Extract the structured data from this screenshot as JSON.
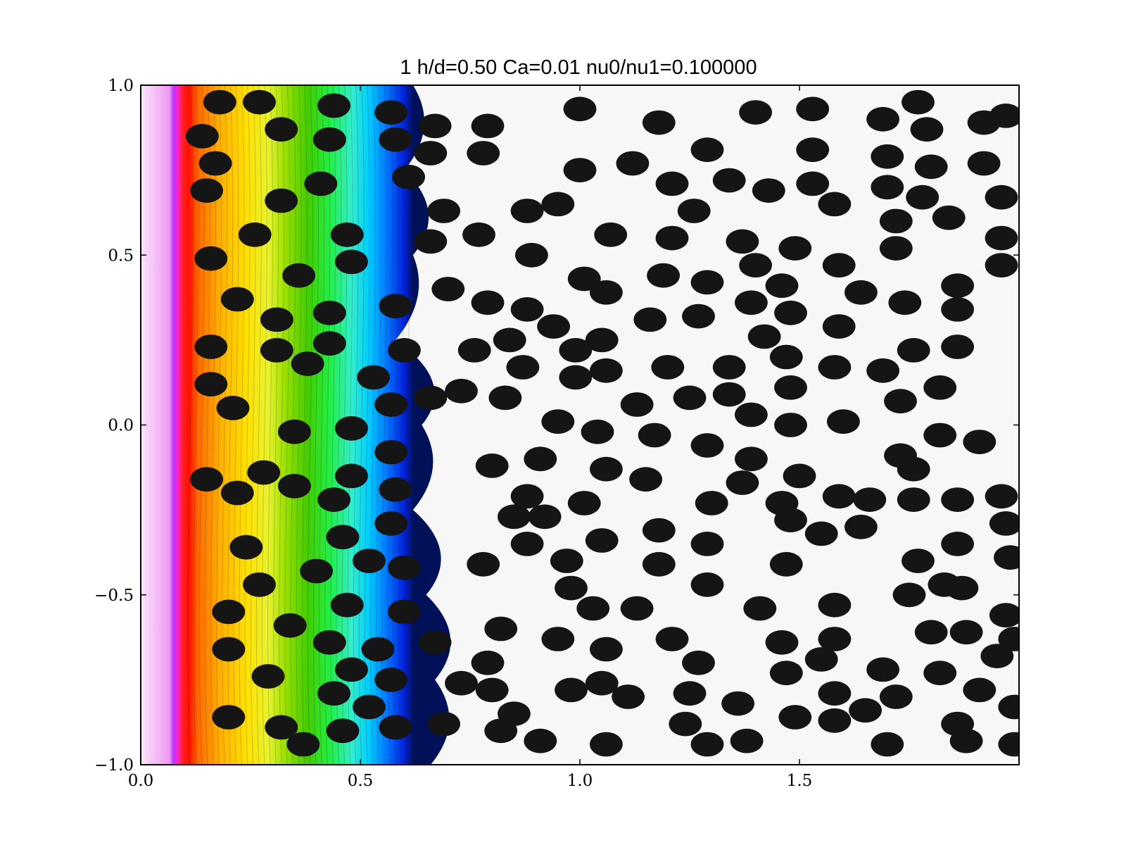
{
  "chart_data": {
    "type": "heatmap",
    "title": "1 h/d=0.50 Ca=0.01 nu0/nu1=0.100000",
    "xlabel": "",
    "ylabel": "",
    "xlim": [
      0.0,
      2.0
    ],
    "ylim": [
      -1.0,
      1.0
    ],
    "xticks": [
      0.0,
      0.5,
      1.0,
      1.5
    ],
    "xtick_labels": [
      "0.0",
      "0.5",
      "1.0",
      "1.5"
    ],
    "yticks": [
      1.0,
      0.5,
      0.0,
      -0.5,
      -1.0
    ],
    "ytick_labels": [
      "1.0",
      "0.5",
      "0.0",
      "−0.5",
      "−1.0"
    ],
    "grid": false,
    "colors": {
      "background": "#f7f7f7",
      "obstacle": "#151515",
      "colormap": [
        "#fbe6fb",
        "#ee99f2",
        "#bb33ff",
        "#ff22cc",
        "#ff2222",
        "#ff1100",
        "#ff6a00",
        "#ffb000",
        "#ffe000",
        "#e8f230",
        "#99e000",
        "#44cc00",
        "#22ee44",
        "#33eecc",
        "#00ccff",
        "#0077ff",
        "#0022dd",
        "#00115a"
      ]
    },
    "front_x": [
      0.62,
      0.64,
      0.6,
      0.66,
      0.64,
      0.67,
      0.69,
      0.68
    ],
    "obstacles": [
      [
        0.18,
        0.95
      ],
      [
        0.27,
        0.95
      ],
      [
        0.44,
        0.94
      ],
      [
        0.57,
        0.92
      ],
      [
        0.14,
        0.85
      ],
      [
        0.32,
        0.87
      ],
      [
        0.43,
        0.84
      ],
      [
        0.58,
        0.84
      ],
      [
        0.17,
        0.77
      ],
      [
        0.15,
        0.69
      ],
      [
        0.32,
        0.66
      ],
      [
        0.41,
        0.71
      ],
      [
        0.61,
        0.73
      ],
      [
        0.26,
        0.56
      ],
      [
        0.47,
        0.56
      ],
      [
        0.16,
        0.49
      ],
      [
        0.36,
        0.44
      ],
      [
        0.48,
        0.48
      ],
      [
        0.22,
        0.37
      ],
      [
        0.31,
        0.31
      ],
      [
        0.43,
        0.33
      ],
      [
        0.58,
        0.35
      ],
      [
        0.16,
        0.23
      ],
      [
        0.31,
        0.22
      ],
      [
        0.43,
        0.24
      ],
      [
        0.6,
        0.22
      ],
      [
        0.38,
        0.18
      ],
      [
        0.53,
        0.14
      ],
      [
        0.16,
        0.12
      ],
      [
        0.21,
        0.05
      ],
      [
        0.57,
        0.06
      ],
      [
        0.35,
        -0.02
      ],
      [
        0.48,
        -0.01
      ],
      [
        0.57,
        -0.08
      ],
      [
        0.15,
        -0.16
      ],
      [
        0.28,
        -0.14
      ],
      [
        0.35,
        -0.18
      ],
      [
        0.22,
        -0.2
      ],
      [
        0.48,
        -0.15
      ],
      [
        0.58,
        -0.19
      ],
      [
        0.44,
        -0.22
      ],
      [
        0.57,
        -0.29
      ],
      [
        0.24,
        -0.36
      ],
      [
        0.46,
        -0.33
      ],
      [
        0.4,
        -0.43
      ],
      [
        0.52,
        -0.4
      ],
      [
        0.6,
        -0.42
      ],
      [
        0.27,
        -0.47
      ],
      [
        0.2,
        -0.55
      ],
      [
        0.47,
        -0.53
      ],
      [
        0.6,
        -0.55
      ],
      [
        0.34,
        -0.59
      ],
      [
        0.2,
        -0.66
      ],
      [
        0.43,
        -0.64
      ],
      [
        0.54,
        -0.66
      ],
      [
        0.29,
        -0.74
      ],
      [
        0.48,
        -0.72
      ],
      [
        0.57,
        -0.75
      ],
      [
        0.44,
        -0.79
      ],
      [
        0.2,
        -0.86
      ],
      [
        0.32,
        -0.89
      ],
      [
        0.46,
        -0.9
      ],
      [
        0.52,
        -0.83
      ],
      [
        0.58,
        -0.89
      ],
      [
        0.37,
        -0.94
      ],
      [
        0.67,
        0.88
      ],
      [
        0.79,
        0.88
      ],
      [
        0.66,
        0.8
      ],
      [
        0.78,
        0.8
      ],
      [
        0.69,
        0.63
      ],
      [
        0.77,
        0.56
      ],
      [
        0.88,
        0.63
      ],
      [
        0.95,
        0.65
      ],
      [
        0.89,
        0.5
      ],
      [
        0.66,
        0.54
      ],
      [
        0.7,
        0.4
      ],
      [
        0.79,
        0.36
      ],
      [
        0.88,
        0.34
      ],
      [
        0.94,
        0.29
      ],
      [
        0.76,
        0.22
      ],
      [
        0.84,
        0.25
      ],
      [
        0.87,
        0.17
      ],
      [
        0.99,
        0.22
      ],
      [
        0.73,
        0.1
      ],
      [
        0.66,
        0.08
      ],
      [
        0.83,
        0.08
      ],
      [
        0.99,
        0.14
      ],
      [
        1.0,
        0.93
      ],
      [
        1.0,
        0.75
      ],
      [
        1.01,
        0.43
      ],
      [
        1.05,
        0.25
      ],
      [
        1.06,
        0.39
      ],
      [
        1.07,
        0.56
      ],
      [
        1.06,
        0.16
      ],
      [
        1.04,
        -0.02
      ],
      [
        0.95,
        0.01
      ],
      [
        1.12,
        0.77
      ],
      [
        1.18,
        0.89
      ],
      [
        1.21,
        0.71
      ],
      [
        1.29,
        0.81
      ],
      [
        1.26,
        0.63
      ],
      [
        1.34,
        0.72
      ],
      [
        1.21,
        0.55
      ],
      [
        1.19,
        0.44
      ],
      [
        1.16,
        0.31
      ],
      [
        1.13,
        0.06
      ],
      [
        1.2,
        0.17
      ],
      [
        1.27,
        0.32
      ],
      [
        1.29,
        0.42
      ],
      [
        1.34,
        0.17
      ],
      [
        1.25,
        0.08
      ],
      [
        1.34,
        0.09
      ],
      [
        1.39,
        0.03
      ],
      [
        1.17,
        -0.03
      ],
      [
        1.29,
        -0.06
      ],
      [
        1.39,
        -0.1
      ],
      [
        1.06,
        -0.13
      ],
      [
        1.15,
        -0.16
      ],
      [
        1.01,
        -0.23
      ],
      [
        1.3,
        -0.23
      ],
      [
        1.4,
        0.92
      ],
      [
        1.43,
        0.69
      ],
      [
        1.37,
        0.54
      ],
      [
        1.4,
        0.47
      ],
      [
        1.49,
        0.52
      ],
      [
        1.46,
        0.41
      ],
      [
        1.39,
        0.36
      ],
      [
        1.48,
        0.33
      ],
      [
        1.42,
        0.26
      ],
      [
        1.47,
        0.2
      ],
      [
        1.48,
        0.11
      ],
      [
        1.48,
        -0.0
      ],
      [
        1.53,
        0.93
      ],
      [
        1.53,
        0.81
      ],
      [
        1.53,
        0.71
      ],
      [
        1.58,
        0.65
      ],
      [
        1.59,
        0.47
      ],
      [
        1.59,
        0.29
      ],
      [
        1.58,
        0.17
      ],
      [
        1.6,
        0.01
      ],
      [
        1.46,
        -0.23
      ],
      [
        1.48,
        -0.28
      ],
      [
        1.5,
        -0.15
      ],
      [
        1.55,
        -0.32
      ],
      [
        1.59,
        -0.21
      ],
      [
        1.66,
        -0.22
      ],
      [
        1.64,
        -0.3
      ],
      [
        1.64,
        0.39
      ],
      [
        1.69,
        0.9
      ],
      [
        1.7,
        0.7
      ],
      [
        1.7,
        0.79
      ],
      [
        1.72,
        0.6
      ],
      [
        1.72,
        0.52
      ],
      [
        1.74,
        0.36
      ],
      [
        1.69,
        0.16
      ],
      [
        1.73,
        0.07
      ],
      [
        1.73,
        -0.09
      ],
      [
        1.76,
        0.22
      ],
      [
        1.77,
        0.95
      ],
      [
        1.79,
        0.87
      ],
      [
        1.8,
        0.76
      ],
      [
        1.78,
        0.67
      ],
      [
        1.84,
        0.61
      ],
      [
        1.86,
        0.41
      ],
      [
        1.86,
        0.34
      ],
      [
        1.86,
        0.23
      ],
      [
        1.82,
        0.11
      ],
      [
        1.82,
        -0.03
      ],
      [
        1.76,
        -0.13
      ],
      [
        1.76,
        -0.22
      ],
      [
        1.86,
        -0.22
      ],
      [
        1.86,
        -0.35
      ],
      [
        1.77,
        -0.4
      ],
      [
        1.83,
        -0.47
      ],
      [
        1.86,
        -0.88
      ],
      [
        1.92,
        0.89
      ],
      [
        1.92,
        0.77
      ],
      [
        1.96,
        0.67
      ],
      [
        1.96,
        0.55
      ],
      [
        1.96,
        0.47
      ],
      [
        1.91,
        -0.05
      ],
      [
        1.96,
        -0.21
      ],
      [
        1.97,
        -0.29
      ],
      [
        1.98,
        -0.39
      ],
      [
        1.97,
        -0.56
      ],
      [
        1.99,
        -0.63
      ],
      [
        1.95,
        -0.68
      ],
      [
        1.99,
        -0.83
      ],
      [
        1.99,
        -0.94
      ],
      [
        1.97,
        0.91
      ],
      [
        0.97,
        -0.4
      ],
      [
        0.92,
        -0.27
      ],
      [
        0.88,
        -0.35
      ],
      [
        0.85,
        -0.27
      ],
      [
        0.88,
        -0.21
      ],
      [
        0.8,
        -0.12
      ],
      [
        0.91,
        -0.1
      ],
      [
        0.78,
        -0.41
      ],
      [
        0.67,
        -0.64
      ],
      [
        0.82,
        -0.6
      ],
      [
        0.79,
        -0.7
      ],
      [
        0.73,
        -0.76
      ],
      [
        0.8,
        -0.78
      ],
      [
        0.85,
        -0.85
      ],
      [
        0.69,
        -0.88
      ],
      [
        0.82,
        -0.9
      ],
      [
        0.91,
        -0.93
      ],
      [
        0.98,
        -0.48
      ],
      [
        0.95,
        -0.63
      ],
      [
        0.98,
        -0.78
      ],
      [
        1.05,
        -0.34
      ],
      [
        1.03,
        -0.54
      ],
      [
        1.06,
        -0.66
      ],
      [
        1.05,
        -0.76
      ],
      [
        1.11,
        -0.8
      ],
      [
        1.13,
        -0.54
      ],
      [
        1.18,
        -0.41
      ],
      [
        1.18,
        -0.31
      ],
      [
        1.21,
        -0.63
      ],
      [
        1.27,
        -0.7
      ],
      [
        1.25,
        -0.79
      ],
      [
        1.29,
        -0.35
      ],
      [
        1.29,
        -0.47
      ],
      [
        1.24,
        -0.88
      ],
      [
        1.29,
        -0.94
      ],
      [
        1.36,
        -0.82
      ],
      [
        1.38,
        -0.93
      ],
      [
        1.41,
        -0.54
      ],
      [
        1.46,
        -0.64
      ],
      [
        1.47,
        -0.73
      ],
      [
        1.47,
        -0.41
      ],
      [
        1.49,
        -0.86
      ],
      [
        1.55,
        -0.69
      ],
      [
        1.58,
        -0.53
      ],
      [
        1.58,
        -0.63
      ],
      [
        1.58,
        -0.79
      ],
      [
        1.58,
        -0.87
      ],
      [
        1.65,
        -0.84
      ],
      [
        1.69,
        -0.72
      ],
      [
        1.72,
        -0.8
      ],
      [
        1.7,
        -0.94
      ],
      [
        1.75,
        -0.5
      ],
      [
        1.8,
        -0.61
      ],
      [
        1.82,
        -0.73
      ],
      [
        1.88,
        -0.61
      ],
      [
        1.88,
        -0.93
      ],
      [
        1.91,
        -0.78
      ],
      [
        1.87,
        -0.48
      ],
      [
        1.06,
        -0.94
      ],
      [
        1.37,
        -0.17
      ]
    ]
  }
}
